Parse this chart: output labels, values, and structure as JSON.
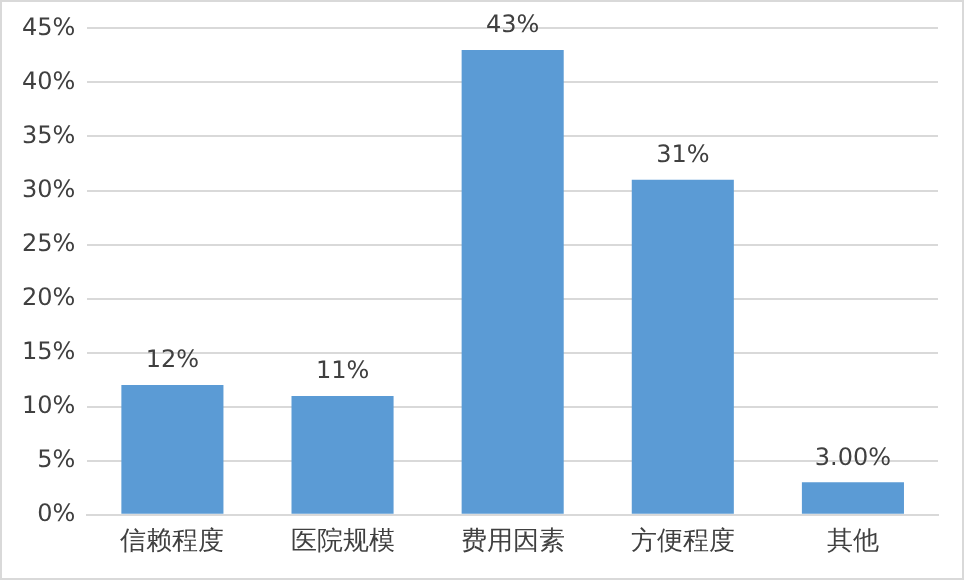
{
  "chart_data": {
    "type": "bar",
    "categories": [
      "信赖程度",
      "医院规模",
      "费用因素",
      "方便程度",
      "其他"
    ],
    "values": [
      12,
      11,
      43,
      31,
      3
    ],
    "value_labels": [
      "12%",
      "11%",
      "43%",
      "31%",
      "3.00%"
    ],
    "color": "#5b9bd5",
    "ylim": [
      0,
      45
    ],
    "yticks": [
      {
        "value": 0,
        "label": "0%"
      },
      {
        "value": 5,
        "label": "5%"
      },
      {
        "value": 10,
        "label": "10%"
      },
      {
        "value": 15,
        "label": "15%"
      },
      {
        "value": 20,
        "label": "20%"
      },
      {
        "value": 25,
        "label": "25%"
      },
      {
        "value": 30,
        "label": "30%"
      },
      {
        "value": 35,
        "label": "35%"
      },
      {
        "value": 40,
        "label": "40%"
      },
      {
        "value": 45,
        "label": "45%"
      }
    ],
    "grid": "y"
  }
}
